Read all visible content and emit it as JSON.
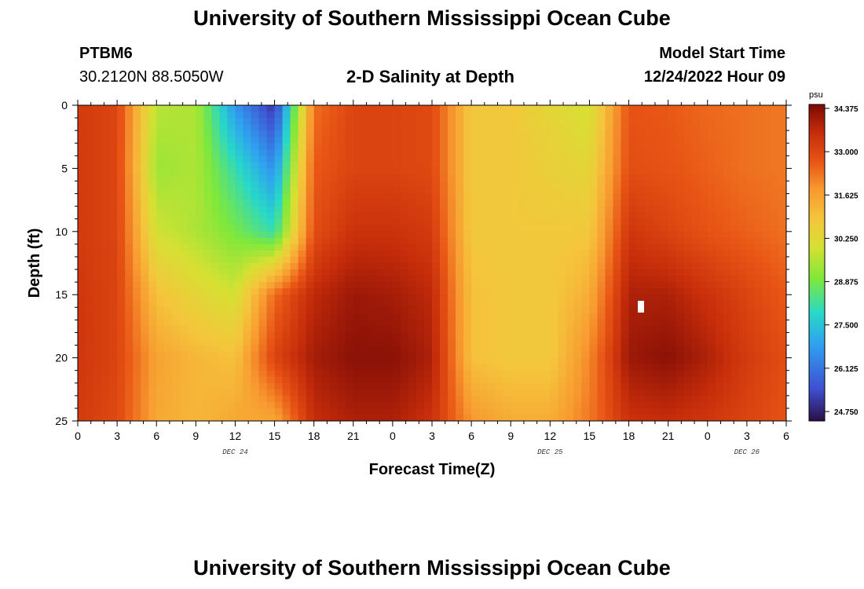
{
  "header": {
    "title_top": "University of Southern Mississippi Ocean Cube",
    "station": "PTBM6",
    "coords": "30.2120N  88.5050W",
    "plot_title": "2-D Salinity at Depth",
    "model_label": "Model Start Time",
    "model_time": "12/24/2022 Hour 09",
    "title_bottom": "University of Southern Mississippi Ocean Cube"
  },
  "chart_data": {
    "type": "heatmap",
    "title": "2-D Salinity at Depth",
    "xlabel": "Forecast Time(Z)",
    "ylabel": "Depth (ft)",
    "x_tick_labels": [
      "0",
      "3",
      "6",
      "9",
      "12",
      "15",
      "18",
      "21",
      "0",
      "3",
      "6",
      "9",
      "12",
      "15",
      "18",
      "21",
      "0",
      "3",
      "6"
    ],
    "x_range_hours": [
      0,
      54
    ],
    "date_labels": [
      {
        "text": "DEC 24",
        "hour": 12
      },
      {
        "text": "DEC 25",
        "hour": 36
      },
      {
        "text": "DEC 26",
        "hour": 51
      }
    ],
    "y_ticks": [
      0,
      5,
      10,
      15,
      20,
      25
    ],
    "ylim": [
      0,
      25
    ],
    "colorbar": {
      "unit": "psu",
      "min": 24.75,
      "max": 34.375,
      "labels": [
        "34.375",
        "33.000",
        "31.625",
        "30.250",
        "28.875",
        "27.500",
        "26.125",
        "24.750"
      ]
    },
    "colormap_stops": [
      {
        "v": 0.0,
        "color": "#2a0f45"
      },
      {
        "v": 0.1,
        "color": "#3f4fd0"
      },
      {
        "v": 0.24,
        "color": "#2fa0f0"
      },
      {
        "v": 0.34,
        "color": "#28d8c8"
      },
      {
        "v": 0.45,
        "color": "#7fe83a"
      },
      {
        "v": 0.55,
        "color": "#d6e033"
      },
      {
        "v": 0.64,
        "color": "#f5c53c"
      },
      {
        "v": 0.73,
        "color": "#f79a30"
      },
      {
        "v": 0.82,
        "color": "#e85515"
      },
      {
        "v": 0.91,
        "color": "#c62d0a"
      },
      {
        "v": 1.0,
        "color": "#7c0a06"
      }
    ],
    "salinity_grid": {
      "depths_ft": [
        0,
        5,
        10,
        15,
        20,
        25
      ],
      "hours": [
        0,
        3,
        6,
        9,
        12,
        15,
        18,
        21,
        24,
        27,
        30,
        33,
        36,
        39,
        42,
        45,
        48,
        51,
        54
      ],
      "values_psu": [
        [
          33.2,
          33.0,
          29.7,
          29.6,
          26.9,
          25.3,
          32.3,
          33.0,
          33.0,
          32.9,
          30.8,
          30.8,
          30.4,
          30.0,
          32.7,
          32.6,
          32.4,
          32.3,
          32.2
        ],
        [
          33.2,
          33.0,
          29.4,
          29.6,
          28.2,
          26.8,
          32.6,
          33.0,
          33.0,
          32.9,
          30.8,
          30.8,
          30.6,
          30.4,
          32.8,
          32.7,
          32.5,
          32.3,
          32.2
        ],
        [
          33.2,
          33.0,
          30.0,
          29.6,
          29.0,
          28.2,
          32.8,
          33.4,
          33.4,
          33.2,
          30.8,
          30.8,
          30.8,
          30.8,
          33.3,
          33.0,
          32.7,
          32.5,
          32.3
        ],
        [
          33.3,
          33.0,
          31.0,
          30.4,
          30.0,
          32.4,
          33.6,
          34.0,
          33.9,
          33.6,
          31.0,
          30.8,
          30.8,
          31.4,
          33.8,
          33.8,
          33.4,
          33.0,
          32.6
        ],
        [
          33.3,
          33.0,
          31.6,
          31.2,
          31.0,
          33.0,
          33.9,
          34.2,
          34.2,
          33.8,
          31.0,
          30.8,
          30.8,
          32.0,
          34.0,
          34.2,
          33.8,
          33.2,
          32.8
        ],
        [
          33.2,
          32.9,
          31.5,
          31.2,
          31.5,
          31.5,
          33.5,
          33.8,
          33.8,
          33.4,
          31.8,
          31.4,
          31.4,
          32.2,
          33.4,
          33.5,
          33.3,
          33.0,
          32.7
        ]
      ]
    }
  }
}
